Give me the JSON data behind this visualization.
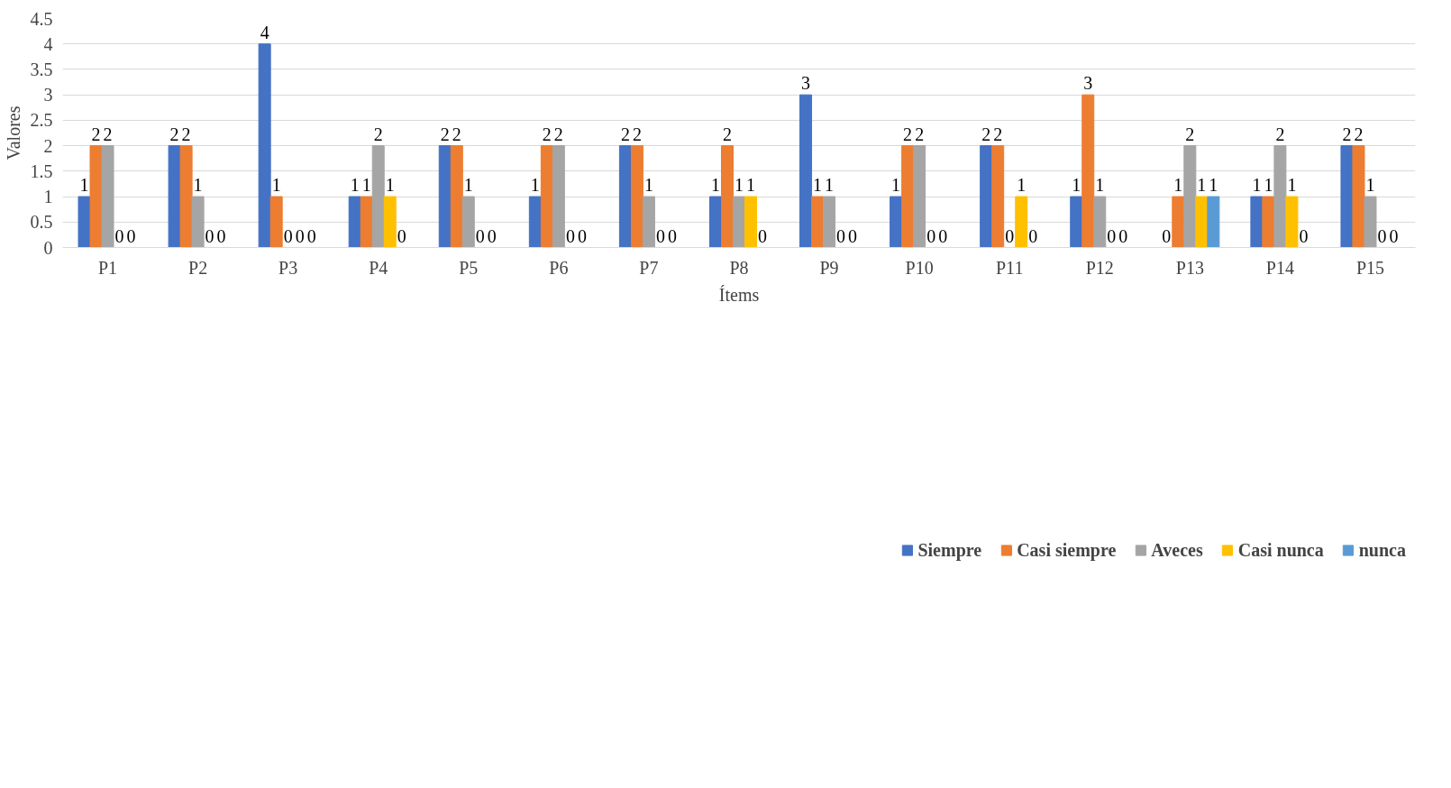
{
  "chart_data": {
    "type": "bar",
    "xlabel": "Ítems",
    "ylabel": "Valores",
    "categories": [
      "P1",
      "P2",
      "P3",
      "P4",
      "P5",
      "P6",
      "P7",
      "P8",
      "P9",
      "P10",
      "P11",
      "P12",
      "P13",
      "P14",
      "P15"
    ],
    "series": [
      {
        "name": "Siempre",
        "color": "#4472c4",
        "values": [
          1,
          2,
          4,
          1,
          2,
          1,
          2,
          1,
          3,
          1,
          2,
          1,
          0,
          1,
          2
        ]
      },
      {
        "name": "Casi siempre",
        "color": "#ed7d31",
        "values": [
          2,
          2,
          1,
          1,
          2,
          2,
          2,
          2,
          1,
          2,
          2,
          3,
          1,
          1,
          2
        ]
      },
      {
        "name": "Aveces",
        "color": "#a5a5a5",
        "values": [
          2,
          1,
          0,
          2,
          1,
          2,
          1,
          1,
          1,
          2,
          0,
          1,
          2,
          2,
          1
        ]
      },
      {
        "name": "Casi nunca",
        "color": "#ffc000",
        "values": [
          0,
          0,
          0,
          1,
          0,
          0,
          0,
          1,
          0,
          0,
          1,
          0,
          1,
          1,
          0
        ]
      },
      {
        "name": "nunca",
        "color": "#5b9bd5",
        "values": [
          0,
          0,
          0,
          0,
          0,
          0,
          0,
          0,
          0,
          0,
          0,
          0,
          1,
          0,
          0
        ]
      }
    ],
    "ylim": [
      0,
      4.5
    ],
    "yticks": [
      0,
      0.5,
      1,
      1.5,
      2,
      2.5,
      3,
      3.5,
      4,
      4.5
    ],
    "grid": "y",
    "legend": "bottom",
    "data_labels": true
  }
}
